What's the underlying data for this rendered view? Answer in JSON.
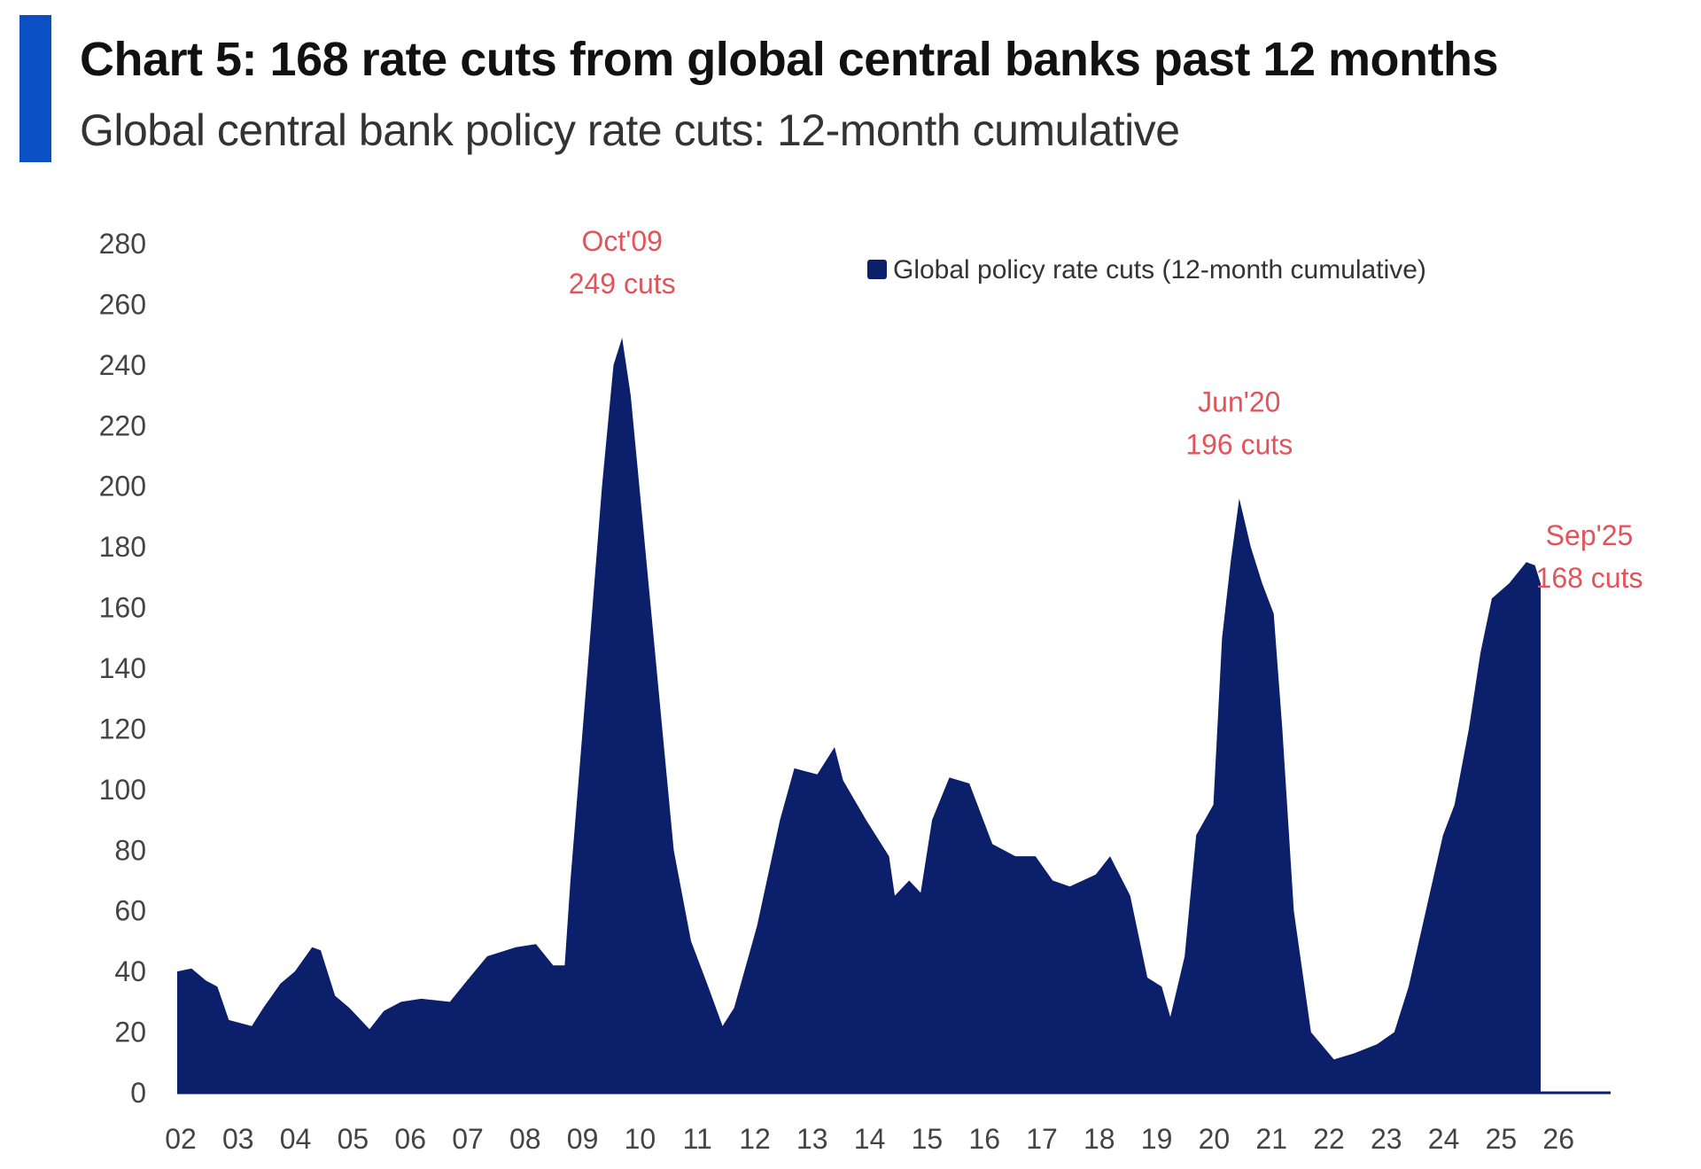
{
  "header": {
    "title": "Chart 5: 168 rate cuts from global central banks past 12 months",
    "subtitle": "Global central bank policy rate cuts: 12-month cumulative"
  },
  "chart_data": {
    "type": "area",
    "title": "Chart 5: 168 rate cuts from global central banks past 12 months",
    "subtitle": "Global central bank policy rate cuts: 12-month cumulative",
    "xlabel": "",
    "ylabel": "",
    "xlim": [
      2002,
      2026.2
    ],
    "ylim": [
      0,
      280
    ],
    "yticks": [
      0,
      20,
      40,
      60,
      80,
      100,
      120,
      140,
      160,
      180,
      200,
      220,
      240,
      260,
      280
    ],
    "xticks": [
      {
        "value": 2002,
        "label": "02"
      },
      {
        "value": 2003,
        "label": "03"
      },
      {
        "value": 2004,
        "label": "04"
      },
      {
        "value": 2005,
        "label": "05"
      },
      {
        "value": 2006,
        "label": "06"
      },
      {
        "value": 2007,
        "label": "07"
      },
      {
        "value": 2008,
        "label": "08"
      },
      {
        "value": 2009,
        "label": "09"
      },
      {
        "value": 2010,
        "label": "10"
      },
      {
        "value": 2011,
        "label": "11"
      },
      {
        "value": 2012,
        "label": "12"
      },
      {
        "value": 2013,
        "label": "13"
      },
      {
        "value": 2014,
        "label": "14"
      },
      {
        "value": 2015,
        "label": "15"
      },
      {
        "value": 2016,
        "label": "16"
      },
      {
        "value": 2017,
        "label": "17"
      },
      {
        "value": 2018,
        "label": "18"
      },
      {
        "value": 2019,
        "label": "19"
      },
      {
        "value": 2020,
        "label": "20"
      },
      {
        "value": 2021,
        "label": "21"
      },
      {
        "value": 2022,
        "label": "22"
      },
      {
        "value": 2023,
        "label": "23"
      },
      {
        "value": 2024,
        "label": "24"
      },
      {
        "value": 2025,
        "label": "25"
      },
      {
        "value": 2026,
        "label": "26"
      }
    ],
    "grid": false,
    "legend": {
      "position": "top-right",
      "entries": [
        "Global policy rate cuts (12-month cumulative)"
      ]
    },
    "colors": {
      "series": "#0b1f6b",
      "annotation": "#e0555b",
      "accent": "#0a4fc4"
    },
    "series": [
      {
        "name": "Global policy rate cuts (12-month cumulative)",
        "x": [
          2002.0,
          2002.25,
          2002.5,
          2002.7,
          2002.9,
          2003.3,
          2003.5,
          2003.8,
          2004.05,
          2004.35,
          2004.5,
          2004.75,
          2005.0,
          2005.35,
          2005.6,
          2005.9,
          2006.25,
          2006.75,
          2007.05,
          2007.4,
          2007.9,
          2008.25,
          2008.55,
          2008.75,
          2008.85,
          2009.15,
          2009.4,
          2009.6,
          2009.75,
          2009.9,
          2010.1,
          2010.4,
          2010.65,
          2010.95,
          2011.25,
          2011.5,
          2011.7,
          2012.1,
          2012.5,
          2012.75,
          2013.15,
          2013.45,
          2013.6,
          2014.0,
          2014.4,
          2014.5,
          2014.75,
          2014.95,
          2015.15,
          2015.45,
          2015.8,
          2016.2,
          2016.6,
          2016.95,
          2017.25,
          2017.55,
          2018.0,
          2018.25,
          2018.6,
          2018.9,
          2019.15,
          2019.3,
          2019.55,
          2019.75,
          2020.05,
          2020.2,
          2020.35,
          2020.5,
          2020.7,
          2020.9,
          2021.1,
          2021.25,
          2021.45,
          2021.75,
          2022.15,
          2022.5,
          2022.9,
          2023.2,
          2023.45,
          2023.75,
          2024.05,
          2024.25,
          2024.5,
          2024.7,
          2024.9,
          2025.2,
          2025.5,
          2025.65,
          2025.75
        ],
        "values": [
          40,
          41,
          37,
          35,
          24,
          22,
          28,
          36,
          40,
          48,
          47,
          32,
          28,
          21,
          27,
          30,
          31,
          30,
          37,
          45,
          48,
          49,
          42,
          42,
          70,
          140,
          200,
          240,
          249,
          230,
          190,
          130,
          80,
          50,
          35,
          22,
          28,
          55,
          90,
          107,
          105,
          114,
          103,
          90,
          78,
          65,
          70,
          66,
          90,
          104,
          102,
          82,
          78,
          78,
          70,
          68,
          72,
          78,
          65,
          38,
          35,
          25,
          45,
          85,
          95,
          150,
          175,
          196,
          180,
          168,
          158,
          120,
          60,
          20,
          11,
          13,
          16,
          20,
          35,
          60,
          85,
          95,
          120,
          145,
          163,
          168,
          175,
          174,
          168
        ]
      }
    ],
    "annotations": [
      {
        "date": "Oct'09",
        "text": "249 cuts",
        "x": 2009.75,
        "y": 249
      },
      {
        "date": "Jun'20",
        "text": "196 cuts",
        "x": 2020.5,
        "y": 196
      },
      {
        "date": "Sep'25",
        "text": "168 cuts",
        "x": 2025.75,
        "y": 168
      }
    ]
  }
}
